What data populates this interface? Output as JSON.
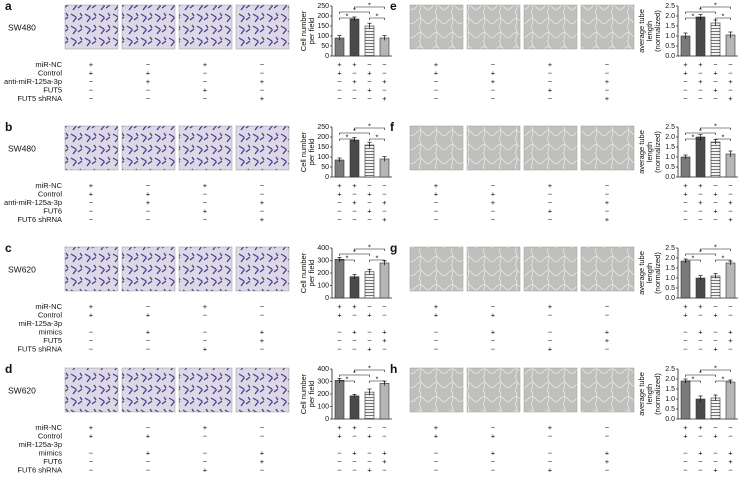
{
  "panels": [
    {
      "letter": "a",
      "cell_line": "SW480",
      "row_labels": [
        [
          "miR-NC"
        ],
        [
          "Control"
        ],
        [
          "anti-miR-125a-3p"
        ],
        [
          "FUT5"
        ],
        [
          "FUT5 shRNA"
        ]
      ],
      "image_signs": [
        [
          "+",
          "−",
          "+",
          "−"
        ],
        [
          "+",
          "+",
          "−",
          "−"
        ],
        [
          "−",
          "+",
          "−",
          "+"
        ],
        [
          "−",
          "−",
          "+",
          "−"
        ],
        [
          "−",
          "−",
          "−",
          "+"
        ]
      ]
    },
    {
      "letter": "b",
      "cell_line": "SW480",
      "row_labels": [
        [
          "miR-NC"
        ],
        [
          "Control"
        ],
        [
          "anti-miR-125a-3p"
        ],
        [
          "FUT6"
        ],
        [
          "FUT6 shRNA"
        ]
      ],
      "image_signs": [
        [
          "+",
          "−",
          "+",
          "−"
        ],
        [
          "+",
          "+",
          "−",
          "−"
        ],
        [
          "−",
          "+",
          "−",
          "+"
        ],
        [
          "−",
          "−",
          "+",
          "−"
        ],
        [
          "−",
          "−",
          "−",
          "+"
        ]
      ]
    },
    {
      "letter": "c",
      "cell_line": "SW620",
      "row_labels": [
        [
          "miR-NC"
        ],
        [
          "Control"
        ],
        [
          "miR-125a-3p",
          "mimics"
        ],
        [
          "FUT5"
        ],
        [
          "FUT5 shRNA"
        ]
      ],
      "image_signs": [
        [
          "+",
          "−",
          "+",
          "−"
        ],
        [
          "+",
          "+",
          "−",
          "−"
        ],
        [
          "−",
          "+",
          "−",
          "+"
        ],
        [
          "−",
          "−",
          "−",
          "+"
        ],
        [
          "−",
          "−",
          "+",
          "−"
        ]
      ]
    },
    {
      "letter": "d",
      "cell_line": "SW620",
      "row_labels": [
        [
          "miR-NC"
        ],
        [
          "Control"
        ],
        [
          "miR-125a-3p",
          "mimics"
        ],
        [
          "FUT6"
        ],
        [
          "FUT6 shRNA"
        ]
      ],
      "image_signs": [
        [
          "+",
          "−",
          "+",
          "−"
        ],
        [
          "+",
          "+",
          "−",
          "−"
        ],
        [
          "−",
          "+",
          "−",
          "+"
        ],
        [
          "−",
          "−",
          "−",
          "+"
        ],
        [
          "−",
          "−",
          "+",
          "−"
        ]
      ]
    },
    {
      "letter": "e",
      "image_signs": [
        [
          "+",
          "−",
          "+",
          "−"
        ],
        [
          "+",
          "+",
          "−",
          "−"
        ],
        [
          "−",
          "+",
          "−",
          "+"
        ],
        [
          "−",
          "−",
          "+",
          "−"
        ],
        [
          "−",
          "−",
          "−",
          "+"
        ]
      ]
    },
    {
      "letter": "f",
      "image_signs": [
        [
          "+",
          "−",
          "+",
          "−"
        ],
        [
          "+",
          "+",
          "−",
          "−"
        ],
        [
          "−",
          "+",
          "−",
          "+"
        ],
        [
          "−",
          "−",
          "+",
          "−"
        ],
        [
          "−",
          "−",
          "−",
          "+"
        ]
      ]
    },
    {
      "letter": "g",
      "image_signs": [
        [
          "+",
          "−",
          "+",
          "−"
        ],
        [
          "+",
          "+",
          "−",
          "−"
        ],
        [
          "−",
          "+",
          "−",
          "+"
        ],
        [
          "−",
          "−",
          "−",
          "+"
        ],
        [
          "−",
          "−",
          "+",
          "−"
        ]
      ]
    },
    {
      "letter": "h",
      "image_signs": [
        [
          "+",
          "−",
          "+",
          "−"
        ],
        [
          "+",
          "+",
          "−",
          "−"
        ],
        [
          "−",
          "+",
          "−",
          "+"
        ],
        [
          "−",
          "−",
          "−",
          "+"
        ],
        [
          "−",
          "−",
          "+",
          "−"
        ]
      ]
    }
  ],
  "chart_data": [
    {
      "type": "bar",
      "ylabel": [
        "Cell number",
        "per field"
      ],
      "values": [
        90,
        185,
        150,
        90
      ],
      "errors": [
        12,
        10,
        14,
        12
      ],
      "colors": [
        "#7a7a7a",
        "#4a4a4a",
        "#dcdcdc",
        "#b5b5b5"
      ],
      "ylim": [
        0,
        250
      ],
      "yticks": [
        0,
        50,
        100,
        150,
        200,
        250
      ],
      "sign_rows": [
        [
          "+",
          "+",
          "−",
          "−"
        ],
        [
          "+",
          "−",
          "+",
          "−"
        ],
        [
          "−",
          "+",
          "−",
          "+"
        ],
        [
          "−",
          "−",
          "+",
          "−"
        ],
        [
          "−",
          "−",
          "−",
          "+"
        ]
      ],
      "annotations": [
        "*",
        "*",
        "*",
        "*"
      ]
    },
    {
      "type": "bar",
      "ylabel": [
        "Cell number",
        "per field"
      ],
      "values": [
        85,
        185,
        160,
        90
      ],
      "errors": [
        10,
        12,
        14,
        12
      ],
      "colors": [
        "#7a7a7a",
        "#4a4a4a",
        "#dcdcdc",
        "#b5b5b5"
      ],
      "ylim": [
        0,
        250
      ],
      "yticks": [
        0,
        50,
        100,
        150,
        200,
        250
      ],
      "sign_rows": [
        [
          "+",
          "+",
          "−",
          "−"
        ],
        [
          "+",
          "−",
          "+",
          "−"
        ],
        [
          "−",
          "+",
          "−",
          "+"
        ],
        [
          "−",
          "−",
          "+",
          "−"
        ],
        [
          "−",
          "−",
          "−",
          "+"
        ]
      ],
      "annotations": [
        "*",
        "*",
        "*",
        "*"
      ]
    },
    {
      "type": "bar",
      "ylabel": [
        "Cell number",
        "per field"
      ],
      "values": [
        310,
        170,
        210,
        280
      ],
      "errors": [
        15,
        18,
        20,
        18
      ],
      "colors": [
        "#7a7a7a",
        "#4a4a4a",
        "#dcdcdc",
        "#b5b5b5"
      ],
      "ylim": [
        0,
        400
      ],
      "yticks": [
        0,
        100,
        200,
        300,
        400
      ],
      "sign_rows": [
        [
          "+",
          "+",
          "−",
          "−"
        ],
        [
          "+",
          "−",
          "+",
          "−"
        ],
        [
          "−",
          "+",
          "−",
          "+"
        ],
        [
          "−",
          "−",
          "−",
          "+"
        ],
        [
          "−",
          "−",
          "+",
          "−"
        ]
      ],
      "annotations": [
        "*",
        "*",
        "*",
        "*"
      ]
    },
    {
      "type": "bar",
      "ylabel": [
        "Cell number",
        "per field"
      ],
      "values": [
        310,
        185,
        215,
        285
      ],
      "errors": [
        15,
        12,
        25,
        18
      ],
      "colors": [
        "#7a7a7a",
        "#4a4a4a",
        "#dcdcdc",
        "#b5b5b5"
      ],
      "ylim": [
        0,
        400
      ],
      "yticks": [
        0,
        100,
        200,
        300,
        400
      ],
      "sign_rows": [
        [
          "+",
          "+",
          "−",
          "−"
        ],
        [
          "+",
          "−",
          "+",
          "−"
        ],
        [
          "−",
          "+",
          "−",
          "+"
        ],
        [
          "−",
          "−",
          "−",
          "+"
        ],
        [
          "−",
          "−",
          "+",
          "−"
        ]
      ],
      "annotations": [
        "*",
        "*",
        "*",
        "*"
      ]
    },
    {
      "type": "bar",
      "ylabel": [
        "average tube",
        "length",
        "(normalized)"
      ],
      "values": [
        1.0,
        1.95,
        1.65,
        1.05
      ],
      "errors": [
        0.15,
        0.12,
        0.15,
        0.15
      ],
      "colors": [
        "#7a7a7a",
        "#4a4a4a",
        "#dcdcdc",
        "#b5b5b5"
      ],
      "ylim": [
        0,
        2.5
      ],
      "yticks": [
        {
          "value": 0,
          "label": "0.0"
        },
        0.5,
        {
          "value": 1,
          "label": "1.0"
        },
        1.5,
        {
          "value": 2,
          "label": "2.0"
        },
        2.5
      ],
      "sign_rows": [
        [
          "+",
          "+",
          "−",
          "−"
        ],
        [
          "+",
          "−",
          "+",
          "−"
        ],
        [
          "−",
          "+",
          "−",
          "+"
        ],
        [
          "−",
          "−",
          "+",
          "−"
        ],
        [
          "−",
          "−",
          "−",
          "+"
        ]
      ],
      "annotations": [
        "*",
        "*",
        "*",
        "*"
      ]
    },
    {
      "type": "bar",
      "ylabel": [
        "average tube",
        "length",
        "(normalized)"
      ],
      "values": [
        1.0,
        2.0,
        1.75,
        1.15
      ],
      "errors": [
        0.1,
        0.12,
        0.12,
        0.15
      ],
      "colors": [
        "#7a7a7a",
        "#4a4a4a",
        "#dcdcdc",
        "#b5b5b5"
      ],
      "ylim": [
        0,
        2.5
      ],
      "yticks": [
        {
          "value": 0,
          "label": "0.0"
        },
        0.5,
        {
          "value": 1,
          "label": "1.0"
        },
        1.5,
        {
          "value": 2,
          "label": "2.0"
        },
        2.5
      ],
      "sign_rows": [
        [
          "+",
          "+",
          "−",
          "−"
        ],
        [
          "+",
          "−",
          "+",
          "−"
        ],
        [
          "−",
          "+",
          "−",
          "+"
        ],
        [
          "−",
          "−",
          "+",
          "−"
        ],
        [
          "−",
          "−",
          "−",
          "+"
        ]
      ],
      "annotations": [
        "*",
        "*",
        "*",
        "*"
      ]
    },
    {
      "type": "bar",
      "ylabel": [
        "average tube",
        "length",
        "(normalized)"
      ],
      "values": [
        1.85,
        1.0,
        1.1,
        1.75
      ],
      "errors": [
        0.1,
        0.12,
        0.12,
        0.1
      ],
      "colors": [
        "#7a7a7a",
        "#4a4a4a",
        "#dcdcdc",
        "#b5b5b5"
      ],
      "ylim": [
        0,
        2.5
      ],
      "yticks": [
        {
          "value": 0,
          "label": "0.0"
        },
        0.5,
        {
          "value": 1,
          "label": "1.0"
        },
        1.5,
        {
          "value": 2,
          "label": "2.0"
        },
        2.5
      ],
      "sign_rows": [
        [
          "+",
          "+",
          "−",
          "−"
        ],
        [
          "+",
          "−",
          "+",
          "−"
        ],
        [
          "−",
          "+",
          "−",
          "+"
        ],
        [
          "−",
          "−",
          "−",
          "+"
        ],
        [
          "−",
          "−",
          "+",
          "−"
        ]
      ],
      "annotations": [
        "*",
        "*",
        "*",
        "*"
      ]
    },
    {
      "type": "bar",
      "ylabel": [
        "average tube",
        "length",
        "(normalized)"
      ],
      "values": [
        1.9,
        1.0,
        1.05,
        1.85
      ],
      "errors": [
        0.1,
        0.15,
        0.15,
        0.1
      ],
      "colors": [
        "#7a7a7a",
        "#4a4a4a",
        "#dcdcdc",
        "#b5b5b5"
      ],
      "ylim": [
        0,
        2.5
      ],
      "yticks": [
        {
          "value": 0,
          "label": "0.0"
        },
        0.5,
        {
          "value": 1,
          "label": "1.0"
        },
        1.5,
        {
          "value": 2,
          "label": "2.0"
        },
        2.5
      ],
      "sign_rows": [
        [
          "+",
          "+",
          "−",
          "−"
        ],
        [
          "+",
          "−",
          "+",
          "−"
        ],
        [
          "−",
          "+",
          "−",
          "+"
        ],
        [
          "−",
          "−",
          "−",
          "+"
        ],
        [
          "−",
          "−",
          "+",
          "−"
        ]
      ],
      "annotations": [
        "*",
        "*",
        "*",
        "*"
      ]
    }
  ]
}
